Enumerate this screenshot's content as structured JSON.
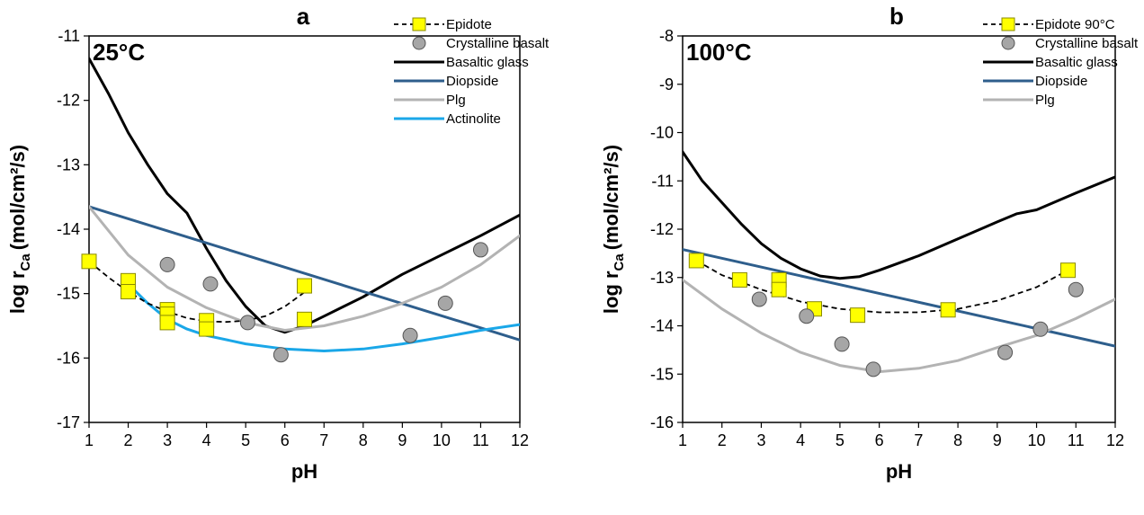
{
  "chart_data": [
    {
      "type": "scatter",
      "panel": "a",
      "temperature_label": "25°C",
      "xlabel": "pH",
      "ylabel_main": "log r",
      "ylabel_sub": "Ca",
      "ylabel_unit": "(mol/cm²/s)",
      "xlim": [
        1,
        12
      ],
      "ylim": [
        -17,
        -11
      ],
      "xticks": [
        1,
        2,
        3,
        4,
        5,
        6,
        7,
        8,
        9,
        10,
        11,
        12
      ],
      "yticks": [
        -17,
        -16,
        -15,
        -14,
        -13,
        -12,
        -11
      ],
      "legend_position": "top-right",
      "series": [
        {
          "name": "Epidote",
          "kind": "marker-dashed",
          "marker": "square",
          "color": "#ffff00",
          "points": [
            [
              1.0,
              -14.5
            ],
            [
              2.0,
              -14.8
            ],
            [
              2.0,
              -14.97
            ],
            [
              3.0,
              -15.25
            ],
            [
              3.0,
              -15.32
            ],
            [
              3.0,
              -15.45
            ],
            [
              4.0,
              -15.42
            ],
            [
              4.0,
              -15.55
            ],
            [
              6.5,
              -14.88
            ],
            [
              6.5,
              -15.4
            ]
          ],
          "fit": [
            [
              1.0,
              -14.5
            ],
            [
              1.5,
              -14.75
            ],
            [
              2.0,
              -14.97
            ],
            [
              2.5,
              -15.15
            ],
            [
              3.0,
              -15.28
            ],
            [
              3.5,
              -15.38
            ],
            [
              4.0,
              -15.43
            ],
            [
              4.5,
              -15.44
            ],
            [
              5.0,
              -15.42
            ],
            [
              5.5,
              -15.35
            ],
            [
              6.0,
              -15.2
            ],
            [
              6.5,
              -14.98
            ]
          ]
        },
        {
          "name": "Crystalline basalt",
          "kind": "marker",
          "marker": "circle",
          "color": "#a6a6a6",
          "points": [
            [
              3.0,
              -14.55
            ],
            [
              4.1,
              -14.85
            ],
            [
              5.05,
              -15.45
            ],
            [
              5.9,
              -15.95
            ],
            [
              9.2,
              -15.65
            ],
            [
              10.1,
              -15.15
            ],
            [
              11.0,
              -14.32
            ]
          ]
        },
        {
          "name": "Basaltic glass",
          "kind": "line",
          "color": "#000000",
          "points": [
            [
              1.0,
              -11.35
            ],
            [
              1.5,
              -11.9
            ],
            [
              2.0,
              -12.5
            ],
            [
              2.5,
              -13.0
            ],
            [
              3.0,
              -13.45
            ],
            [
              3.5,
              -13.75
            ],
            [
              4.0,
              -14.3
            ],
            [
              4.5,
              -14.8
            ],
            [
              5.0,
              -15.2
            ],
            [
              5.5,
              -15.5
            ],
            [
              6.0,
              -15.6
            ],
            [
              6.5,
              -15.5
            ],
            [
              7.0,
              -15.35
            ],
            [
              8.0,
              -15.05
            ],
            [
              9.0,
              -14.7
            ],
            [
              10.0,
              -14.4
            ],
            [
              11.0,
              -14.1
            ],
            [
              12.0,
              -13.78
            ]
          ]
        },
        {
          "name": "Diopside",
          "kind": "line",
          "color": "#2e5e8c",
          "points": [
            [
              1.0,
              -13.65
            ],
            [
              12.0,
              -15.72
            ]
          ]
        },
        {
          "name": "Plg",
          "kind": "line",
          "color": "#b3b3b3",
          "points": [
            [
              1.0,
              -13.65
            ],
            [
              2.0,
              -14.4
            ],
            [
              3.0,
              -14.9
            ],
            [
              4.0,
              -15.22
            ],
            [
              5.0,
              -15.45
            ],
            [
              6.0,
              -15.57
            ],
            [
              7.0,
              -15.5
            ],
            [
              8.0,
              -15.35
            ],
            [
              9.0,
              -15.15
            ],
            [
              10.0,
              -14.9
            ],
            [
              11.0,
              -14.55
            ],
            [
              12.0,
              -14.1
            ]
          ]
        },
        {
          "name": "Actinolite",
          "kind": "line",
          "color": "#1aa7e8",
          "points": [
            [
              2.0,
              -14.85
            ],
            [
              2.5,
              -15.15
            ],
            [
              3.0,
              -15.4
            ],
            [
              3.5,
              -15.55
            ],
            [
              4.0,
              -15.65
            ],
            [
              5.0,
              -15.78
            ],
            [
              6.0,
              -15.86
            ],
            [
              7.0,
              -15.89
            ],
            [
              8.0,
              -15.86
            ],
            [
              9.0,
              -15.78
            ],
            [
              10.0,
              -15.68
            ],
            [
              11.0,
              -15.57
            ],
            [
              12.0,
              -15.48
            ]
          ]
        }
      ]
    },
    {
      "type": "scatter",
      "panel": "b",
      "temperature_label": "100°C",
      "xlabel": "pH",
      "ylabel_main": "log r",
      "ylabel_sub": "Ca",
      "ylabel_unit": "(mol/cm²/s)",
      "xlim": [
        1,
        12
      ],
      "ylim": [
        -16,
        -8
      ],
      "xticks": [
        1,
        2,
        3,
        4,
        5,
        6,
        7,
        8,
        9,
        10,
        11,
        12
      ],
      "yticks": [
        -16,
        -15,
        -14,
        -13,
        -12,
        -11,
        -10,
        -9,
        -8
      ],
      "legend_position": "top-right",
      "series": [
        {
          "name": "Epidote 90°C",
          "kind": "marker-dashed",
          "marker": "square",
          "color": "#ffff00",
          "points": [
            [
              1.35,
              -12.65
            ],
            [
              2.45,
              -13.05
            ],
            [
              3.45,
              -13.05
            ],
            [
              3.45,
              -13.25
            ],
            [
              4.35,
              -13.65
            ],
            [
              5.45,
              -13.78
            ],
            [
              7.75,
              -13.67
            ],
            [
              10.8,
              -12.85
            ]
          ],
          "fit": [
            [
              1.35,
              -12.65
            ],
            [
              2.0,
              -12.95
            ],
            [
              3.0,
              -13.25
            ],
            [
              4.0,
              -13.5
            ],
            [
              5.0,
              -13.65
            ],
            [
              6.0,
              -13.72
            ],
            [
              7.0,
              -13.72
            ],
            [
              8.0,
              -13.65
            ],
            [
              9.0,
              -13.48
            ],
            [
              10.0,
              -13.2
            ],
            [
              10.8,
              -12.85
            ]
          ]
        },
        {
          "name": "Crystalline basalt",
          "kind": "marker",
          "marker": "circle",
          "color": "#a6a6a6",
          "points": [
            [
              2.95,
              -13.45
            ],
            [
              4.15,
              -13.8
            ],
            [
              5.05,
              -14.38
            ],
            [
              5.85,
              -14.9
            ],
            [
              9.2,
              -14.55
            ],
            [
              10.1,
              -14.07
            ],
            [
              11.0,
              -13.25
            ]
          ]
        },
        {
          "name": "Basaltic glass",
          "kind": "line",
          "color": "#000000",
          "points": [
            [
              1.0,
              -10.4
            ],
            [
              1.5,
              -11.0
            ],
            [
              2.0,
              -11.45
            ],
            [
              2.5,
              -11.9
            ],
            [
              3.0,
              -12.3
            ],
            [
              3.5,
              -12.6
            ],
            [
              4.0,
              -12.82
            ],
            [
              4.5,
              -12.97
            ],
            [
              5.0,
              -13.02
            ],
            [
              5.5,
              -12.98
            ],
            [
              6.0,
              -12.85
            ],
            [
              7.0,
              -12.55
            ],
            [
              8.0,
              -12.2
            ],
            [
              9.0,
              -11.85
            ],
            [
              9.5,
              -11.68
            ],
            [
              10.0,
              -11.6
            ],
            [
              11.0,
              -11.25
            ],
            [
              12.0,
              -10.92
            ]
          ]
        },
        {
          "name": "Diopside",
          "kind": "line",
          "color": "#2e5e8c",
          "points": [
            [
              1.0,
              -12.42
            ],
            [
              12.0,
              -14.42
            ]
          ]
        },
        {
          "name": "Plg",
          "kind": "line",
          "color": "#b3b3b3",
          "points": [
            [
              1.0,
              -13.05
            ],
            [
              2.0,
              -13.65
            ],
            [
              3.0,
              -14.15
            ],
            [
              4.0,
              -14.55
            ],
            [
              5.0,
              -14.82
            ],
            [
              6.0,
              -14.95
            ],
            [
              7.0,
              -14.88
            ],
            [
              8.0,
              -14.72
            ],
            [
              9.0,
              -14.45
            ],
            [
              10.0,
              -14.2
            ],
            [
              11.0,
              -13.85
            ],
            [
              12.0,
              -13.45
            ]
          ]
        }
      ]
    }
  ]
}
